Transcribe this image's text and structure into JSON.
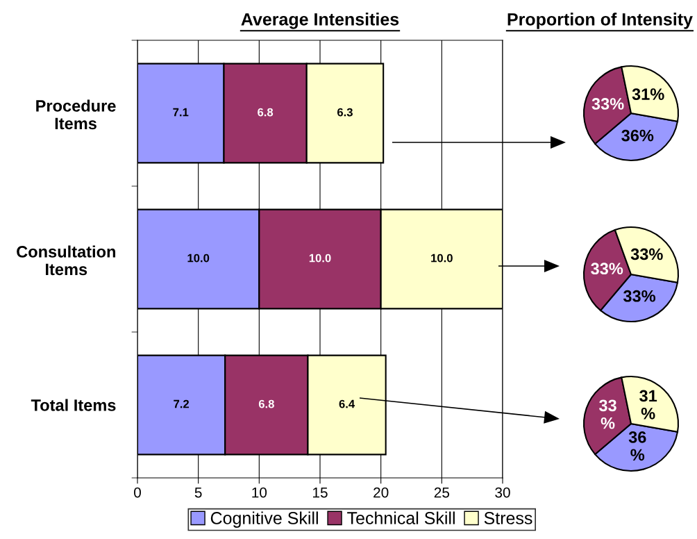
{
  "chart_data": [
    {
      "type": "bar",
      "orientation": "horizontal",
      "stacked": true,
      "title": "Average Intensities",
      "categories": [
        "Procedure\nItems",
        "Consultation\nItems",
        "Total Items"
      ],
      "series": [
        {
          "name": "Cognitive Skill",
          "color": "#9999ff",
          "values": [
            7.1,
            10.0,
            7.2
          ],
          "value_labels": [
            "7.1",
            "10.0",
            "7.2"
          ]
        },
        {
          "name": "Technical Skill",
          "color": "#993366",
          "values": [
            6.8,
            10.0,
            6.8
          ],
          "value_labels": [
            "6.8",
            "10.0",
            "6.8"
          ]
        },
        {
          "name": "Stress",
          "color": "#ffffcc",
          "values": [
            6.3,
            10.0,
            6.4
          ],
          "value_labels": [
            "6.3",
            "10.0",
            "6.4"
          ]
        }
      ],
      "xlim": [
        0,
        30
      ],
      "xticks": [
        0,
        5,
        10,
        15,
        20,
        25,
        30
      ],
      "grid": "x",
      "legend": "bottom"
    },
    {
      "type": "pie",
      "title": "Proportion of Intensity",
      "categories": [
        null,
        null,
        null
      ],
      "colors": [
        "#9999ff",
        "#993366",
        "#ffffcc"
      ],
      "values": [
        36,
        33,
        31
      ],
      "value_labels": [
        "36%",
        "33%",
        "31%"
      ]
    },
    {
      "type": "pie",
      "categories": [
        null,
        null,
        null
      ],
      "colors": [
        "#9999ff",
        "#993366",
        "#ffffcc"
      ],
      "values": [
        33.4,
        33.3,
        33.3
      ],
      "value_labels": [
        "33%",
        "33%",
        "33%"
      ]
    },
    {
      "type": "pie",
      "categories": [
        null,
        null,
        null
      ],
      "colors": [
        "#9999ff",
        "#993366",
        "#ffffcc"
      ],
      "values": [
        36,
        33,
        31
      ],
      "value_labels": [
        "36\n%",
        "33\n%",
        "31\n%"
      ]
    }
  ]
}
